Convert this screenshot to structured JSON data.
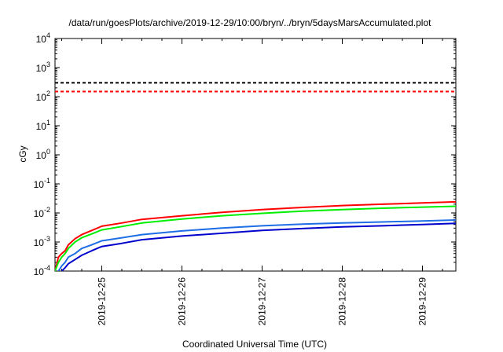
{
  "chart_data": {
    "type": "line",
    "title": "/data/run/goesPlots/archive/2019-12-29/10:00/bryn/../bryn/5daysMarsAccumulated.plot",
    "xlabel": "Coordinated Universal Time (UTC)",
    "ylabel": "cGy",
    "yscale": "log",
    "ylim": [
      0.0001,
      10000
    ],
    "y_ticks": [
      {
        "value": 0.0001,
        "base": "10",
        "exp": "-4"
      },
      {
        "value": 0.001,
        "base": "10",
        "exp": "-3"
      },
      {
        "value": 0.01,
        "base": "10",
        "exp": "-2"
      },
      {
        "value": 0.1,
        "base": "10",
        "exp": "-1"
      },
      {
        "value": 1,
        "base": "10",
        "exp": "0"
      },
      {
        "value": 10,
        "base": "10",
        "exp": "1"
      },
      {
        "value": 100,
        "base": "10",
        "exp": "2"
      },
      {
        "value": 1000,
        "base": "10",
        "exp": "3"
      },
      {
        "value": 10000,
        "base": "10",
        "exp": "4"
      }
    ],
    "xlim": [
      "2019-12-24 10:00",
      "2019-12-29 10:00"
    ],
    "x_ticks": [
      {
        "value": "2019-12-25 00:00",
        "label": "2019-12-25"
      },
      {
        "value": "2019-12-26 00:00",
        "label": "2019-12-26"
      },
      {
        "value": "2019-12-27 00:00",
        "label": "2019-12-27"
      },
      {
        "value": "2019-12-28 00:00",
        "label": "2019-12-28"
      },
      {
        "value": "2019-12-29 00:00",
        "label": "2019-12-29"
      }
    ],
    "grid": false,
    "reference_lines": [
      {
        "value": 300,
        "color": "#000000",
        "style": "dashed"
      },
      {
        "value": 150,
        "color": "#ff0000",
        "style": "dashed"
      }
    ],
    "series": [
      {
        "color": "#ff0000",
        "x": [
          "2019-12-24 10:00",
          "2019-12-24 11:00",
          "2019-12-24 12:00",
          "2019-12-24 13:00",
          "2019-12-24 14:00",
          "2019-12-24 16:00",
          "2019-12-24 18:00",
          "2019-12-24 21:00",
          "2019-12-25 00:00",
          "2019-12-25 06:00",
          "2019-12-25 12:00",
          "2019-12-26 00:00",
          "2019-12-26 12:00",
          "2019-12-27 00:00",
          "2019-12-27 12:00",
          "2019-12-28 00:00",
          "2019-12-28 12:00",
          "2019-12-29 00:00",
          "2019-12-29 10:00"
        ],
        "y": [
          0.0001,
          0.0003,
          0.0004,
          0.0005,
          0.0008,
          0.0013,
          0.0018,
          0.0025,
          0.0035,
          0.0045,
          0.006,
          0.008,
          0.0105,
          0.013,
          0.0155,
          0.018,
          0.02,
          0.022,
          0.024
        ]
      },
      {
        "color": "#00ee00",
        "x": [
          "2019-12-24 10:00",
          "2019-12-24 11:00",
          "2019-12-24 12:00",
          "2019-12-24 13:00",
          "2019-12-24 14:00",
          "2019-12-24 16:00",
          "2019-12-24 18:00",
          "2019-12-24 21:00",
          "2019-12-25 00:00",
          "2019-12-25 06:00",
          "2019-12-25 12:00",
          "2019-12-26 00:00",
          "2019-12-26 12:00",
          "2019-12-27 00:00",
          "2019-12-27 12:00",
          "2019-12-28 00:00",
          "2019-12-28 12:00",
          "2019-12-29 00:00",
          "2019-12-29 10:00"
        ],
        "y": [
          0.0001,
          0.0002,
          0.0003,
          0.0004,
          0.0006,
          0.001,
          0.0014,
          0.0019,
          0.0026,
          0.0034,
          0.0045,
          0.0062,
          0.008,
          0.0097,
          0.0115,
          0.013,
          0.0145,
          0.0158,
          0.017
        ]
      },
      {
        "color": "#1e6ee6",
        "x": [
          "2019-12-24 11:00",
          "2019-12-24 12:00",
          "2019-12-24 13:00",
          "2019-12-24 14:00",
          "2019-12-24 16:00",
          "2019-12-24 18:00",
          "2019-12-24 21:00",
          "2019-12-25 00:00",
          "2019-12-25 06:00",
          "2019-12-25 12:00",
          "2019-12-26 00:00",
          "2019-12-26 12:00",
          "2019-12-27 00:00",
          "2019-12-27 12:00",
          "2019-12-28 00:00",
          "2019-12-28 12:00",
          "2019-12-29 00:00",
          "2019-12-29 10:00"
        ],
        "y": [
          0.0001,
          0.00015,
          0.0002,
          0.0003,
          0.0004,
          0.0006,
          0.0008,
          0.0011,
          0.0014,
          0.0018,
          0.0024,
          0.003,
          0.0036,
          0.0041,
          0.0045,
          0.0049,
          0.0053,
          0.0057
        ]
      },
      {
        "color": "#0000cc",
        "x": [
          "2019-12-24 12:00",
          "2019-12-24 13:00",
          "2019-12-24 14:00",
          "2019-12-24 16:00",
          "2019-12-24 18:00",
          "2019-12-24 21:00",
          "2019-12-25 00:00",
          "2019-12-25 06:00",
          "2019-12-25 12:00",
          "2019-12-26 00:00",
          "2019-12-26 12:00",
          "2019-12-27 00:00",
          "2019-12-27 12:00",
          "2019-12-28 00:00",
          "2019-12-28 12:00",
          "2019-12-29 00:00",
          "2019-12-29 10:00"
        ],
        "y": [
          0.0001,
          0.00013,
          0.00018,
          0.00025,
          0.00035,
          0.0005,
          0.0007,
          0.0009,
          0.0012,
          0.0016,
          0.002,
          0.0025,
          0.0029,
          0.0033,
          0.0036,
          0.004,
          0.0044
        ]
      }
    ]
  }
}
